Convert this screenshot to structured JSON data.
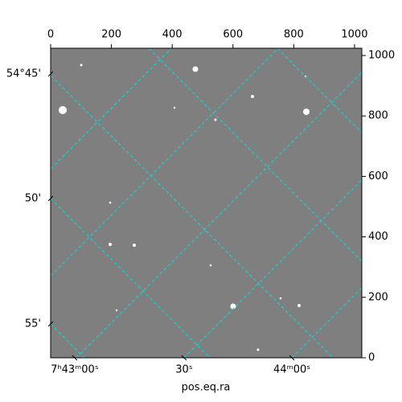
{
  "chart_data": {
    "type": "image",
    "xlabel": "pos.eq.ra",
    "xlim": [
      0,
      1024
    ],
    "ylim": [
      0,
      1024
    ],
    "xticks": [
      0,
      200,
      400,
      600,
      800,
      1000
    ],
    "yticks": [
      0,
      200,
      400,
      600,
      800,
      1000
    ],
    "ra_ticks": [
      {
        "value": 79,
        "label": "7ʰ43ᵐ00ˢ"
      },
      {
        "value": 439,
        "label": "30ˢ"
      },
      {
        "value": 794,
        "label": "44ᵐ00ˢ"
      }
    ],
    "dec_ticks": [
      {
        "value": 939,
        "label": "54°45'"
      },
      {
        "value": 527,
        "label": "50'"
      },
      {
        "value": 112,
        "label": "55'"
      }
    ],
    "grid": true,
    "grid_color": "#00e0e0"
  }
}
